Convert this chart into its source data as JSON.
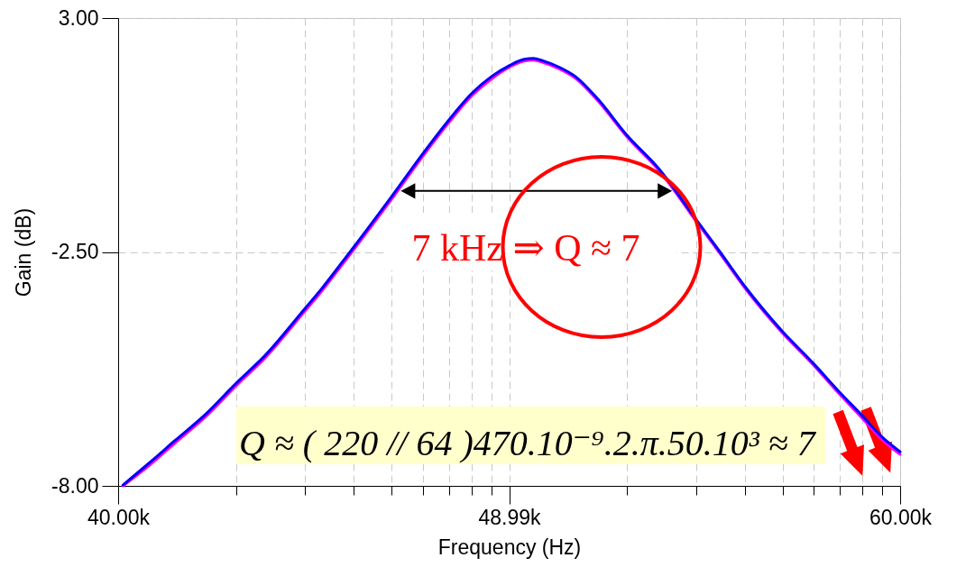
{
  "chart_data": {
    "type": "line",
    "xlabel": "Frequency (Hz)",
    "ylabel": "Gain (dB)",
    "log": "x",
    "x": [
      40100,
      40640,
      41190,
      41880,
      42520,
      43170,
      44060,
      44470,
      44950,
      45110,
      46040,
      46900,
      47480,
      48040,
      48550,
      48990,
      49370,
      49610,
      49870,
      50290,
      50710,
      51300,
      52070,
      52950,
      53970,
      54650,
      55350,
      56450,
      57360,
      58150,
      58830,
      59450,
      60000
    ],
    "series": [
      {
        "color": "#ff00ff",
        "values": [
          -8.0,
          -7.53,
          -7.0,
          -6.35,
          -5.65,
          -4.99,
          -3.9,
          -3.4,
          -2.77,
          -2.56,
          -1.33,
          -0.18,
          0.54,
          1.16,
          1.57,
          1.84,
          1.99,
          2.01,
          1.95,
          1.8,
          1.58,
          1.05,
          0.21,
          -0.59,
          -1.77,
          -2.54,
          -3.34,
          -4.41,
          -5.16,
          -5.85,
          -6.41,
          -6.92,
          -7.26
        ]
      },
      {
        "color": "#0000ff",
        "values": [
          -7.98,
          -7.47,
          -6.94,
          -6.29,
          -5.59,
          -4.93,
          -3.84,
          -3.34,
          -2.71,
          -2.5,
          -1.27,
          -0.12,
          0.6,
          1.22,
          1.63,
          1.88,
          2.03,
          2.05,
          1.99,
          1.84,
          1.62,
          1.09,
          0.25,
          -0.55,
          -1.73,
          -2.5,
          -3.3,
          -4.37,
          -5.12,
          -5.8,
          -6.35,
          -6.86,
          -7.2
        ]
      }
    ],
    "xlim": [
      40000,
      60000
    ],
    "xticks": [
      {
        "value": 40000,
        "label": "40.00k"
      },
      {
        "value": 42520,
        "label": null
      },
      {
        "value": 44060,
        "label": null
      },
      {
        "value": 45190,
        "label": null
      },
      {
        "value": 46090,
        "label": null
      },
      {
        "value": 46840,
        "label": null
      },
      {
        "value": 47480,
        "label": null
      },
      {
        "value": 48040,
        "label": null
      },
      {
        "value": 48540,
        "label": null
      },
      {
        "value": 48990,
        "label": "48.99k"
      },
      {
        "value": 52070,
        "label": null
      },
      {
        "value": 53970,
        "label": null
      },
      {
        "value": 55350,
        "label": null
      },
      {
        "value": 56450,
        "label": null
      },
      {
        "value": 57360,
        "label": null
      },
      {
        "value": 58150,
        "label": null
      },
      {
        "value": 58830,
        "label": null
      },
      {
        "value": 59450,
        "label": null
      },
      {
        "value": 60000,
        "label": "60.00k"
      }
    ],
    "ylim": [
      -8,
      3
    ],
    "yticks": [
      {
        "value": -8,
        "label": "-8.00"
      },
      {
        "value": -2.5,
        "label": "-2.50"
      },
      {
        "value": 3,
        "label": "3.00"
      }
    ],
    "grid": true,
    "annotations": [
      "7 kHz ⇒ Q ≈ 7",
      "Q ≈ ( 220 // 64 )470.10⁻⁹.2.π.50.10³ ≈ 7"
    ]
  }
}
